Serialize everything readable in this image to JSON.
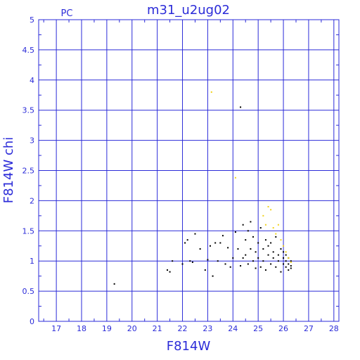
{
  "chart_data": {
    "type": "scatter",
    "title": "m31_u2ug02",
    "subtitle": "PC",
    "xlabel": "F814W",
    "ylabel": "F814W  chi",
    "xlim": [
      16.3,
      28.2
    ],
    "ylim": [
      0,
      5
    ],
    "xticks": [
      "17",
      "18",
      "19",
      "20",
      "21",
      "22",
      "23",
      "24",
      "25",
      "26",
      "27",
      "28"
    ],
    "yticks": [
      "0",
      "0.5",
      "1",
      "1.5",
      "2",
      "2.5",
      "3",
      "3.5",
      "4",
      "4.5",
      "5"
    ],
    "grid": true,
    "colors": {
      "axis": "#2b2bd8",
      "grid": "#2b2bd8",
      "series_black": "#000000",
      "series_yellow": "#f2d21a"
    },
    "series": [
      {
        "color": "#000000",
        "points": [
          [
            19.3,
            0.62
          ],
          [
            21.4,
            0.85
          ],
          [
            21.5,
            0.82
          ],
          [
            21.6,
            1.0
          ],
          [
            22.0,
            0.95
          ],
          [
            22.1,
            1.3
          ],
          [
            22.2,
            1.35
          ],
          [
            22.3,
            1.0
          ],
          [
            22.4,
            0.98
          ],
          [
            22.5,
            1.45
          ],
          [
            22.7,
            1.2
          ],
          [
            22.9,
            0.85
          ],
          [
            23.0,
            1.02
          ],
          [
            23.1,
            1.25
          ],
          [
            23.2,
            0.75
          ],
          [
            23.3,
            1.3
          ],
          [
            23.4,
            1.0
          ],
          [
            23.5,
            1.3
          ],
          [
            23.6,
            1.42
          ],
          [
            23.7,
            0.95
          ],
          [
            23.8,
            1.22
          ],
          [
            23.9,
            0.9
          ],
          [
            24.0,
            1.05
          ],
          [
            24.1,
            1.48
          ],
          [
            24.2,
            1.2
          ],
          [
            24.3,
            3.55
          ],
          [
            24.3,
            0.92
          ],
          [
            24.4,
            1.6
          ],
          [
            24.4,
            1.05
          ],
          [
            24.5,
            1.35
          ],
          [
            24.5,
            1.1
          ],
          [
            24.6,
            1.5
          ],
          [
            24.6,
            0.95
          ],
          [
            24.7,
            1.65
          ],
          [
            24.7,
            1.2
          ],
          [
            24.8,
            1.0
          ],
          [
            24.8,
            1.4
          ],
          [
            24.9,
            1.15
          ],
          [
            24.9,
            0.88
          ],
          [
            25.0,
            1.3
          ],
          [
            25.0,
            1.05
          ],
          [
            25.1,
            1.55
          ],
          [
            25.1,
            0.9
          ],
          [
            25.2,
            1.2
          ],
          [
            25.2,
            1.0
          ],
          [
            25.3,
            1.35
          ],
          [
            25.3,
            0.85
          ],
          [
            25.4,
            1.1
          ],
          [
            25.4,
            1.25
          ],
          [
            25.5,
            0.95
          ],
          [
            25.5,
            1.3
          ],
          [
            25.6,
            1.05
          ],
          [
            25.6,
            1.15
          ],
          [
            25.7,
            1.4
          ],
          [
            25.7,
            0.9
          ],
          [
            25.8,
            1.1
          ],
          [
            25.8,
            1.0
          ],
          [
            25.9,
            1.2
          ],
          [
            25.9,
            0.82
          ],
          [
            26.0,
            1.05
          ],
          [
            26.0,
            0.95
          ],
          [
            26.0,
            1.15
          ],
          [
            26.1,
            0.9
          ],
          [
            26.1,
            1.0
          ],
          [
            26.1,
            1.1
          ],
          [
            26.2,
            0.85
          ],
          [
            26.2,
            0.95
          ],
          [
            26.2,
            1.05
          ],
          [
            26.3,
            0.88
          ],
          [
            26.3,
            1.0
          ],
          [
            26.3,
            0.92
          ]
        ]
      },
      {
        "color": "#f2d21a",
        "points": [
          [
            23.15,
            3.8
          ],
          [
            24.1,
            2.38
          ],
          [
            25.2,
            1.75
          ],
          [
            25.3,
            1.6
          ],
          [
            25.4,
            1.9
          ],
          [
            25.5,
            1.85
          ],
          [
            25.6,
            1.55
          ],
          [
            25.7,
            1.45
          ],
          [
            25.8,
            1.6
          ],
          [
            25.9,
            1.35
          ],
          [
            26.0,
            1.25
          ],
          [
            26.1,
            1.15
          ],
          [
            26.2,
            1.05
          ],
          [
            26.3,
            0.98
          ]
        ]
      }
    ]
  }
}
